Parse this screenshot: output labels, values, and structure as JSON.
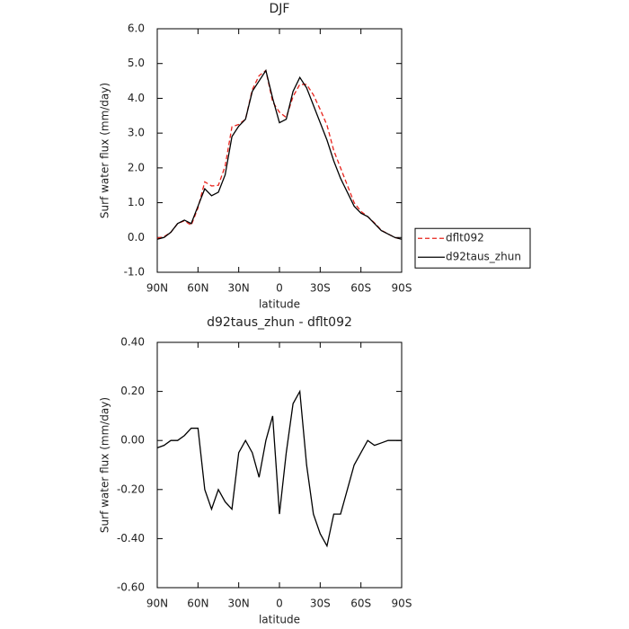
{
  "chart_data": [
    {
      "type": "line",
      "title": "DJF",
      "xlabel": "latitude",
      "ylabel": "Surf water flux (mm/day)",
      "x": [
        90,
        85,
        80,
        75,
        70,
        65,
        60,
        55,
        50,
        45,
        40,
        35,
        30,
        25,
        20,
        15,
        10,
        5,
        0,
        -5,
        -10,
        -15,
        -20,
        -25,
        -30,
        -35,
        -40,
        -45,
        -50,
        -55,
        -60,
        -65,
        -70,
        -75,
        -80,
        -85,
        -90
      ],
      "series": [
        {
          "name": "dflt092",
          "color": "#e8221b",
          "linestyle": "dashed",
          "values": [
            -0.02,
            0.02,
            0.15,
            0.4,
            0.48,
            0.35,
            0.85,
            1.6,
            1.48,
            1.5,
            2.05,
            3.18,
            3.25,
            3.4,
            4.25,
            4.65,
            4.8,
            3.9,
            3.6,
            3.45,
            4.05,
            4.4,
            4.4,
            4.1,
            3.68,
            3.23,
            2.5,
            2.0,
            1.5,
            1.0,
            0.75,
            0.6,
            0.42,
            0.21,
            0.1,
            0.0,
            -0.05
          ]
        },
        {
          "name": "d92taus_zhun",
          "color": "#000000",
          "linestyle": "solid",
          "values": [
            -0.05,
            0.0,
            0.15,
            0.4,
            0.5,
            0.4,
            0.9,
            1.4,
            1.2,
            1.3,
            1.8,
            2.9,
            3.2,
            3.4,
            4.2,
            4.5,
            4.8,
            4.0,
            3.3,
            3.4,
            4.2,
            4.6,
            4.3,
            3.8,
            3.3,
            2.8,
            2.2,
            1.7,
            1.3,
            0.9,
            0.7,
            0.6,
            0.4,
            0.2,
            0.1,
            0.0,
            -0.05
          ]
        }
      ],
      "xlim": [
        90,
        -90
      ],
      "xticks": [
        {
          "value": 90,
          "label": "90N"
        },
        {
          "value": 60,
          "label": "60N"
        },
        {
          "value": 30,
          "label": "30N"
        },
        0,
        {
          "value": -30,
          "label": "30S"
        },
        {
          "value": -60,
          "label": "60S"
        },
        {
          "value": -90,
          "label": "90S"
        }
      ],
      "ylim": [
        -1,
        6
      ],
      "yticks": [
        {
          "value": -1,
          "label": "-1.0"
        },
        {
          "value": 0,
          "label": "0.0"
        },
        {
          "value": 1,
          "label": "1.0"
        },
        {
          "value": 2,
          "label": "2.0"
        },
        {
          "value": 3,
          "label": "3.0"
        },
        {
          "value": 4,
          "label": "4.0"
        },
        {
          "value": 5,
          "label": "5.0"
        },
        {
          "value": 6,
          "label": "6.0"
        }
      ],
      "grid": false,
      "legend": "right"
    },
    {
      "type": "line",
      "title": "d92taus_zhun - dflt092",
      "xlabel": "latitude",
      "ylabel": "Surf water flux (mm/day)",
      "x": [
        90,
        85,
        80,
        75,
        70,
        65,
        60,
        55,
        50,
        45,
        40,
        35,
        30,
        25,
        20,
        15,
        10,
        5,
        0,
        -5,
        -10,
        -15,
        -20,
        -25,
        -30,
        -35,
        -40,
        -45,
        -50,
        -55,
        -60,
        -65,
        -70,
        -75,
        -80,
        -85,
        -90
      ],
      "values": [
        -0.03,
        -0.02,
        0.0,
        0.0,
        0.02,
        0.05,
        0.05,
        -0.2,
        -0.28,
        -0.2,
        -0.25,
        -0.28,
        -0.05,
        0.0,
        -0.05,
        -0.15,
        0.0,
        0.1,
        -0.3,
        -0.05,
        0.15,
        0.2,
        -0.1,
        -0.3,
        -0.38,
        -0.43,
        -0.3,
        -0.3,
        -0.2,
        -0.1,
        -0.05,
        0.0,
        -0.02,
        -0.01,
        0.0,
        0.0,
        0.0
      ],
      "color": "#000000",
      "xlim": [
        90,
        -90
      ],
      "xticks": [
        {
          "value": 90,
          "label": "90N"
        },
        {
          "value": 60,
          "label": "60N"
        },
        {
          "value": 30,
          "label": "30N"
        },
        0,
        {
          "value": -30,
          "label": "30S"
        },
        {
          "value": -60,
          "label": "60S"
        },
        {
          "value": -90,
          "label": "90S"
        }
      ],
      "ylim": [
        -0.6,
        0.4
      ],
      "yticks": [
        {
          "value": -0.6,
          "label": "-0.60"
        },
        {
          "value": -0.4,
          "label": "-0.40"
        },
        {
          "value": -0.2,
          "label": "-0.20"
        },
        {
          "value": 0,
          "label": "0.00"
        },
        {
          "value": 0.2,
          "label": "0.20"
        },
        {
          "value": 0.4,
          "label": "0.40"
        }
      ],
      "grid": false
    }
  ]
}
